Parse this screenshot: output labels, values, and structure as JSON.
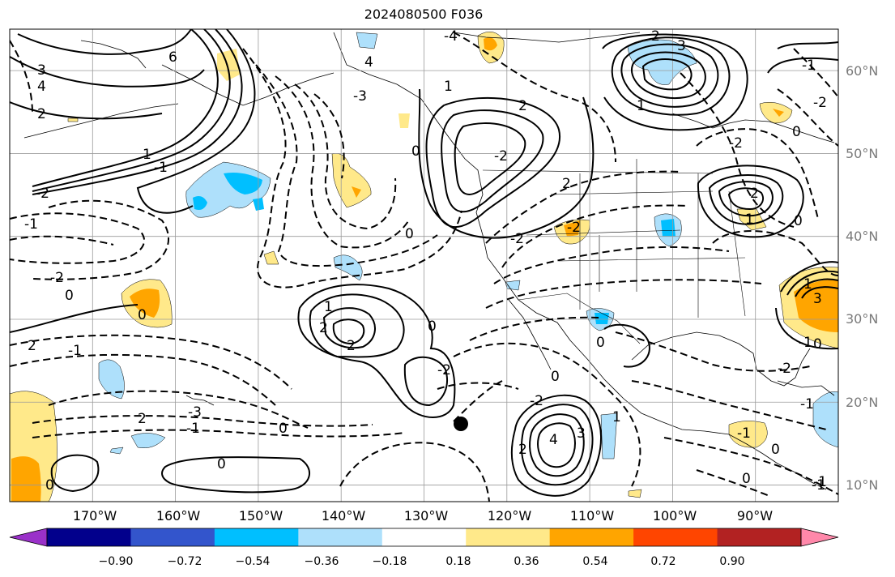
{
  "title": "2024080500 F036",
  "map": {
    "lon_labels": [
      "170°W",
      "160°W",
      "150°W",
      "140°W",
      "130°W",
      "120°W",
      "110°W",
      "100°W",
      "90°W"
    ],
    "lat_labels": [
      "60°N",
      "50°N",
      "40°N",
      "30°N",
      "20°N",
      "10°N"
    ],
    "lon_range": [
      -180,
      -80
    ],
    "lat_range": [
      8,
      65
    ],
    "grid": true,
    "contour_labels": [
      "-4",
      "4",
      "6",
      "3",
      "4",
      "2",
      "1",
      "-1",
      "-2",
      "-3",
      "0",
      "1",
      "2",
      "-2",
      "-1",
      "0",
      "2",
      "3",
      "1",
      "2",
      "-2",
      "2",
      "1",
      "0",
      "-1",
      "-2",
      "2",
      "1",
      "2",
      "0",
      "-2",
      "-1",
      "0",
      "2",
      "4",
      "3",
      "1",
      "0",
      "1",
      "-1",
      "0",
      "3",
      "-1",
      "2",
      "-3",
      "-2",
      "0",
      "-2",
      "-1",
      "0",
      "-2",
      "-1",
      "0",
      "0",
      "-1",
      "0",
      "-2",
      "0",
      "2",
      "-2",
      "0",
      "0",
      "-1"
    ]
  },
  "colorbar": {
    "tick_labels": [
      "−0.90",
      "−0.72",
      "−0.54",
      "−0.36",
      "−0.18",
      "0.18",
      "0.36",
      "0.54",
      "0.72",
      "0.90"
    ],
    "colors": [
      "#9a31c9",
      "#02008c",
      "#3355cc",
      "#00bfff",
      "#aee0fb",
      "#ffffff",
      "#ffe98a",
      "#ffa500",
      "#ff4500",
      "#b22222",
      "#ff88aa"
    ]
  }
}
